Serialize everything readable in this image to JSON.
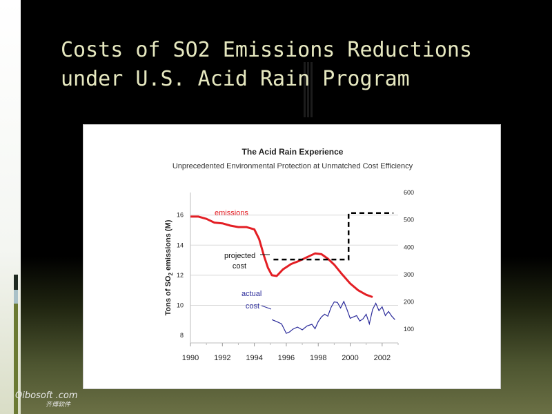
{
  "slide": {
    "title": "Costs of SO2 Emissions Reductions under U.S. Acid Rain Program",
    "watermark_main": "Qibosoft .com",
    "watermark_sub": "齐博软件"
  },
  "colors": {
    "emissions": "#e31e24",
    "actual_cost": "#2a2a9a",
    "projected_cost": "#000000",
    "title_text": "#e6e8c0"
  },
  "chart_data": {
    "type": "line",
    "title": "The Acid Rain Experience",
    "subtitle": "Unprecedented Environmental Protection at Unmatched Cost Efficiency",
    "xlabel": "",
    "ylabel": "Tons of SO2 emissions (M)",
    "ylabel_parts": [
      "Tons of SO",
      "2",
      " emissions (M)"
    ],
    "y2label": "",
    "xlim": [
      1990,
      2003
    ],
    "ylim": [
      7.5,
      17.5
    ],
    "y2lim": [
      50,
      600
    ],
    "x_ticks": [
      1990,
      1992,
      1994,
      1996,
      1998,
      2000,
      2002
    ],
    "y_ticks": [
      8,
      10,
      12,
      14,
      16
    ],
    "y2_ticks": [
      100,
      200,
      300,
      400,
      500,
      600
    ],
    "gridlines": [
      10.0,
      12.0,
      14.0,
      16.0
    ],
    "annotations": [
      {
        "label": "emissions",
        "series": "emissions"
      },
      {
        "label": "projected",
        "series": "projected"
      },
      {
        "label": "cost",
        "series": "projected"
      },
      {
        "label": "actual",
        "series": "actual"
      },
      {
        "label": "cost",
        "series": "actual"
      }
    ],
    "series": [
      {
        "key": "emissions",
        "axis": "left",
        "style": "solid",
        "x": [
          1990,
          1990.5,
          1991,
          1991.5,
          1992,
          1992.5,
          1993,
          1993.5,
          1994,
          1994.3,
          1994.6,
          1994.85,
          1995.1,
          1995.4,
          1995.8,
          1996.3,
          1996.8,
          1997.3,
          1997.8,
          1998.2,
          1998.6,
          1999,
          1999.5,
          2000,
          2000.5,
          2001,
          2001.4
        ],
        "values": [
          15.9,
          15.9,
          15.75,
          15.5,
          15.45,
          15.3,
          15.2,
          15.2,
          15.05,
          14.4,
          13.3,
          12.5,
          12.0,
          11.95,
          12.4,
          12.75,
          12.95,
          13.2,
          13.45,
          13.4,
          13.1,
          12.7,
          12.05,
          11.45,
          11.0,
          10.7,
          10.55
        ]
      },
      {
        "key": "projected",
        "axis": "right",
        "style": "dashed",
        "x": [
          1995.2,
          1999.9,
          1999.9,
          2002.7
        ],
        "values": [
          355,
          355,
          525,
          525
        ]
      },
      {
        "key": "actual",
        "axis": "right",
        "style": "solid",
        "x": [
          1995.1,
          1995.4,
          1995.7,
          1996.0,
          1996.2,
          1996.4,
          1996.7,
          1997.0,
          1997.3,
          1997.6,
          1997.8,
          1998.0,
          1998.2,
          1998.4,
          1998.6,
          1998.8,
          1999.0,
          1999.2,
          1999.4,
          1999.6,
          1999.8,
          2000.0,
          2000.2,
          2000.4,
          2000.6,
          2000.8,
          2001.0,
          2001.2,
          2001.4,
          2001.6,
          2001.8,
          2002.0,
          2002.2,
          2002.4,
          2002.6,
          2002.8
        ],
        "values": [
          135,
          128,
          120,
          85,
          90,
          100,
          108,
          98,
          112,
          118,
          102,
          128,
          145,
          155,
          148,
          180,
          200,
          198,
          178,
          202,
          172,
          140,
          145,
          150,
          130,
          138,
          155,
          120,
          172,
          195,
          168,
          182,
          150,
          165,
          148,
          135
        ]
      }
    ]
  }
}
